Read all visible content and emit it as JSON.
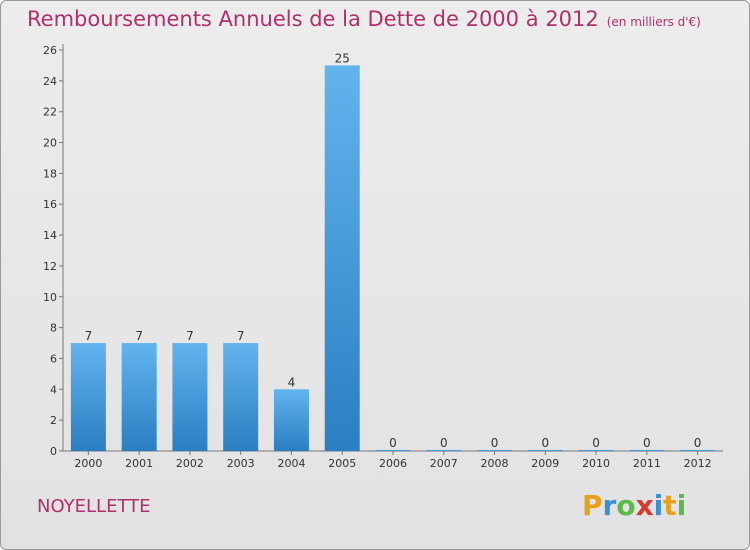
{
  "title": "Remboursements Annuels de la Dette de 2000 à 2012",
  "unit": "(en milliers d'€)",
  "city": "NOYELLETTE",
  "logo": {
    "letters": [
      "P",
      "r",
      "o",
      "x",
      "i",
      "t",
      "i"
    ],
    "colors": [
      "#e8a21a",
      "#3b8fd6",
      "#5bb84a",
      "#d93a2e",
      "#3b8fd6",
      "#e8a21a",
      "#5bb84a"
    ]
  },
  "colors": {
    "bar_light": "#62b4ee",
    "bar_dark": "#2a7fc2",
    "title": "#b0306a"
  },
  "chart_data": {
    "type": "bar",
    "title": "Remboursements Annuels de la Dette de 2000 à 2012",
    "categories": [
      "2000",
      "2001",
      "2002",
      "2003",
      "2004",
      "2005",
      "2006",
      "2007",
      "2008",
      "2009",
      "2010",
      "2011",
      "2012"
    ],
    "values": [
      7,
      7,
      7,
      7,
      4,
      25,
      0,
      0,
      0,
      0,
      0,
      0,
      0
    ],
    "data_labels": [
      "7",
      "7",
      "7",
      "7",
      "4",
      "25",
      "0",
      "0",
      "0",
      "0",
      "0",
      "0",
      "0"
    ],
    "ylim": [
      0,
      26
    ],
    "yticks": [
      0,
      2,
      4,
      6,
      8,
      10,
      12,
      14,
      16,
      18,
      20,
      22,
      24,
      26
    ],
    "grid": false,
    "legend": "none"
  }
}
